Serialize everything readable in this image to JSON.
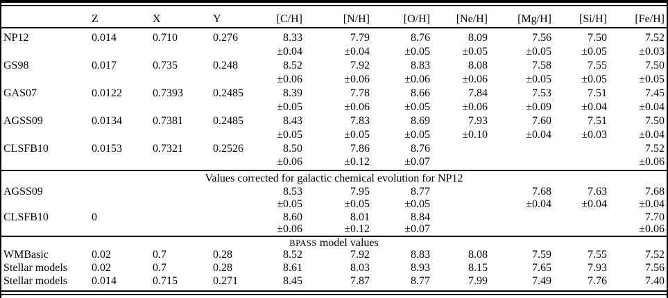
{
  "page": {
    "background": "#ffffff",
    "text_color": "#000000",
    "rule_color": "#000000"
  },
  "table": {
    "columns": [
      "",
      "Z",
      "X",
      "Y",
      "[C/H]",
      "[N/H]",
      "[O/H]",
      "[Ne/H]",
      "[Mg/H]",
      "[Si/H]",
      "[Fe/H]"
    ],
    "main_rows": [
      {
        "type": "value",
        "cells": [
          "NP12",
          "0.014",
          "0.710",
          "0.276",
          "8.33",
          "7.79",
          "8.76",
          "8.09",
          "7.56",
          "7.50",
          "7.52"
        ]
      },
      {
        "type": "uncertainty",
        "cells": [
          "",
          "",
          "",
          "",
          "±0.04",
          "±0.04",
          "±0.05",
          "±0.05",
          "±0.05",
          "±0.05",
          "±0.03"
        ]
      },
      {
        "type": "value",
        "cells": [
          "GS98",
          "0.017",
          "0.735",
          "0.248",
          "8.52",
          "7.92",
          "8.83",
          "8.08",
          "7.58",
          "7.55",
          "7.50"
        ]
      },
      {
        "type": "uncertainty",
        "cells": [
          "",
          "",
          "",
          "",
          "±0.06",
          "±0.06",
          "±0.06",
          "±0.06",
          "±0.05",
          "±0.05",
          "±0.05"
        ]
      },
      {
        "type": "value",
        "cells": [
          "GAS07",
          "0.0122",
          "0.7393",
          "0.2485",
          "8.39",
          "7.78",
          "8.66",
          "7.84",
          "7.53",
          "7.51",
          "7.45"
        ]
      },
      {
        "type": "uncertainty",
        "cells": [
          "",
          "",
          "",
          "",
          "±0.05",
          "±0.06",
          "±0.05",
          "±0.06",
          "±0.09",
          "±0.04",
          "±0.04"
        ]
      },
      {
        "type": "value",
        "cells": [
          "AGSS09",
          "0.0134",
          "0.7381",
          "0.2485",
          "8.43",
          "7.83",
          "8.69",
          "7.93",
          "7.60",
          "7.51",
          "7.50"
        ]
      },
      {
        "type": "uncertainty",
        "cells": [
          "",
          "",
          "",
          "",
          "±0.05",
          "±0.05",
          "±0.05",
          "±0.10",
          "±0.04",
          "±0.03",
          "±0.04"
        ]
      },
      {
        "type": "value",
        "cells": [
          "CLSFB10",
          "0.0153",
          "0.7321",
          "0.2526",
          "8.50",
          "7.86",
          "8.76",
          "",
          "",
          "",
          "7.52"
        ]
      },
      {
        "type": "uncertainty",
        "cells": [
          "",
          "",
          "",
          "",
          "±0.06",
          "±0.12",
          "±0.07",
          "",
          "",
          "",
          "±0.06"
        ]
      }
    ],
    "corrected_header": "Values corrected for galactic chemical evolution for NP12",
    "corrected_rows": [
      {
        "type": "value",
        "cells": [
          "AGSS09",
          "",
          "",
          "",
          "8.53",
          "7.95",
          "8.77",
          "",
          "7.68",
          "7.63",
          "7.68"
        ]
      },
      {
        "type": "uncertainty",
        "cells": [
          "",
          "",
          "",
          "",
          "±0.05",
          "±0.05",
          "±0.05",
          "",
          "±0.04",
          "±0.04",
          "±0.04"
        ]
      },
      {
        "type": "value",
        "cells": [
          "CLSFB10",
          "0",
          "",
          "",
          "8.60",
          "8.01",
          "8.84",
          "",
          "",
          "",
          "7.70"
        ]
      },
      {
        "type": "uncertainty",
        "cells": [
          "",
          "",
          "",
          "",
          "±0.06",
          "±0.12",
          "±0.07",
          "",
          "",
          "",
          "±0.06"
        ]
      }
    ],
    "bpass_header_smallcaps": "BPASS",
    "bpass_header_rest": " model values",
    "bpass_rows": [
      {
        "type": "value",
        "cells": [
          "WMBasic",
          "0.02",
          "0.7",
          "0.28",
          "8.52",
          "7.92",
          "8.83",
          "8.08",
          "7.59",
          "7.55",
          "7.52"
        ]
      },
      {
        "type": "value",
        "cells": [
          "Stellar models",
          "0.02",
          "0.7",
          "0.28",
          "8.61",
          "8.03",
          "8.93",
          "8.15",
          "7.65",
          "7.93",
          "7.56"
        ]
      },
      {
        "type": "value",
        "cells": [
          "Stellar models",
          "0.014",
          "0.715",
          "0.271",
          "8.45",
          "7.87",
          "8.77",
          "7.99",
          "7.49",
          "7.76",
          "7.40"
        ]
      }
    ]
  }
}
